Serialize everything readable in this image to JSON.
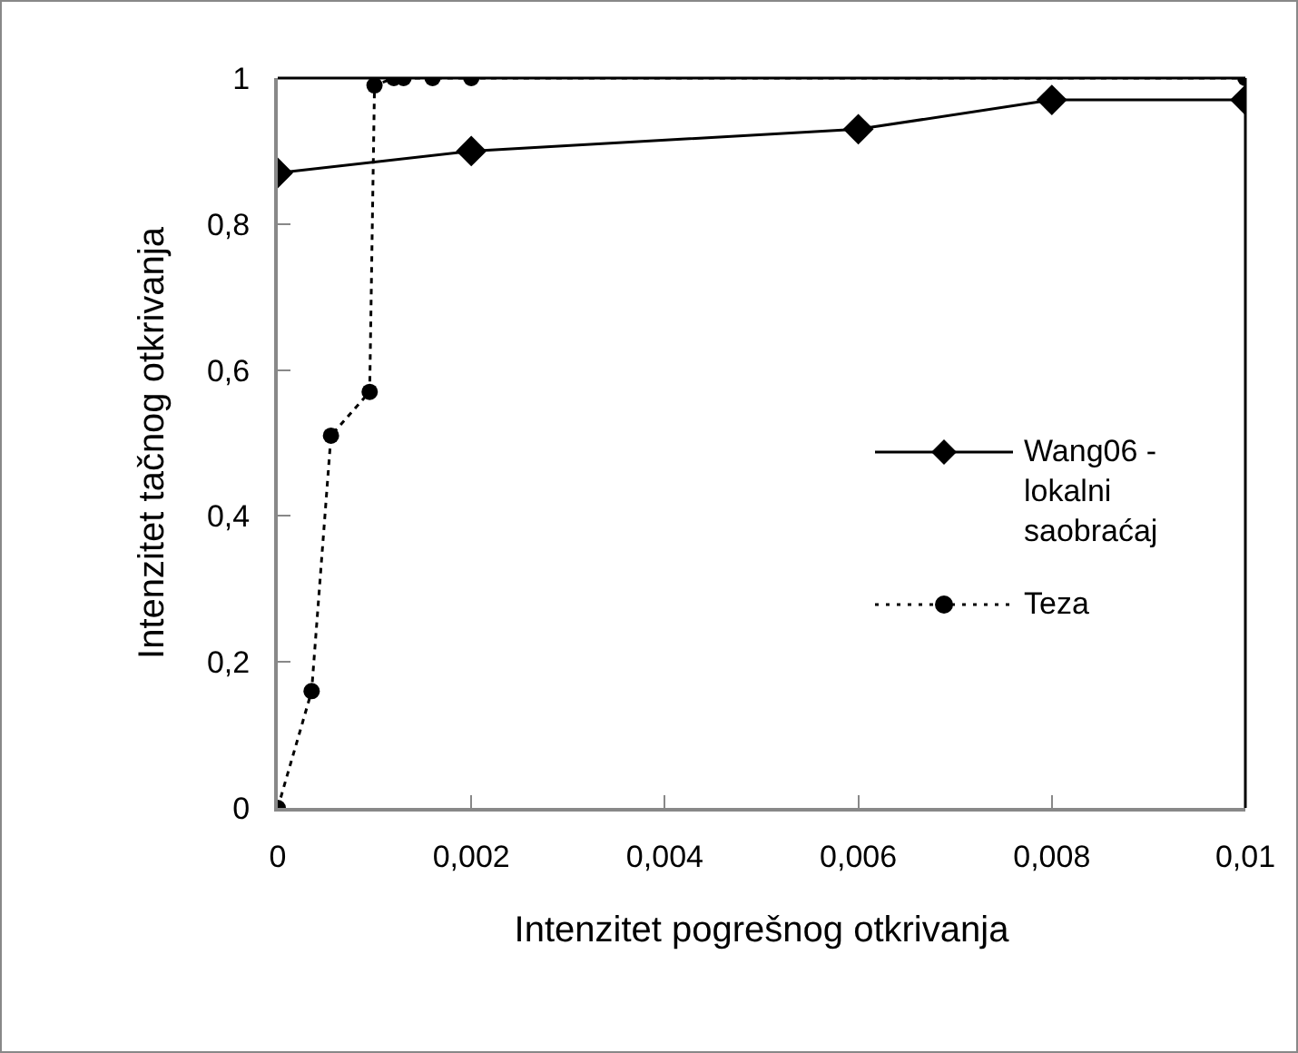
{
  "chart_data": {
    "type": "line",
    "xlabel": "Intenzitet pogrešnog otkrivanja",
    "ylabel": "Intenzitet tačnog otkrivanja",
    "xlim": [
      0,
      0.01
    ],
    "xticks": [
      {
        "value": 0,
        "label": "0"
      },
      {
        "value": 0.002,
        "label": "0,002"
      },
      {
        "value": 0.004,
        "label": "0,004"
      },
      {
        "value": 0.006,
        "label": "0,006"
      },
      {
        "value": 0.008,
        "label": "0,008"
      },
      {
        "value": 0.01,
        "label": "0,01"
      }
    ],
    "ylim": [
      0,
      1
    ],
    "yticks": [
      {
        "value": 0,
        "label": "0"
      },
      {
        "value": 0.2,
        "label": "0,2"
      },
      {
        "value": 0.4,
        "label": "0,4"
      },
      {
        "value": 0.6,
        "label": "0,6"
      },
      {
        "value": 0.8,
        "label": "0,8"
      },
      {
        "value": 1,
        "label": "1"
      }
    ],
    "grid": false,
    "legend": "right",
    "series": [
      {
        "name": "Wang06 - lokalni saobraćaj",
        "color": "#000000",
        "marker": "diamond",
        "line_style": "solid",
        "x": [
          0,
          0.002,
          0.006,
          0.008,
          0.01
        ],
        "values": [
          0.87,
          0.9,
          0.93,
          0.97,
          0.97
        ]
      },
      {
        "name": "Teza",
        "color": "#000000",
        "marker": "circle",
        "line_style": "dotted",
        "x": [
          0,
          0.00035,
          0.00055,
          0.00095,
          0.001,
          0.0012,
          0.0013,
          0.0016,
          0.002,
          0.01
        ],
        "values": [
          0,
          0.16,
          0.51,
          0.57,
          0.99,
          1,
          1,
          1,
          1,
          1
        ]
      }
    ]
  }
}
